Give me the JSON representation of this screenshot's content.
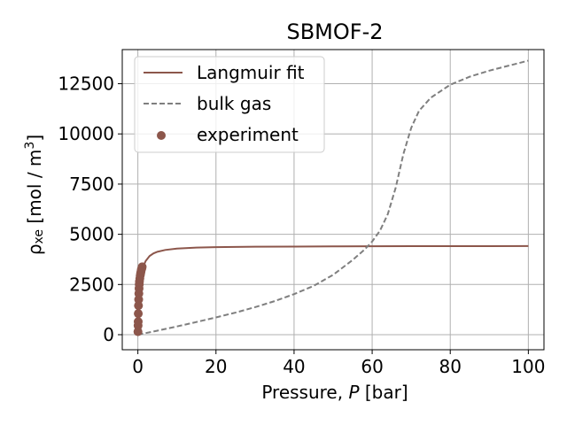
{
  "chart_data": {
    "type": "line",
    "title": "SBMOF-2",
    "xlabel_prefix": "Pressure, ",
    "xlabel_var": "P",
    "xlabel_suffix": " [bar]",
    "ylabel_main": "ρ",
    "ylabel_sub": "xe",
    "ylabel_units": " [mol / m",
    "ylabel_sup": "3",
    "ylabel_close": "]",
    "xlim": [
      -4,
      104
    ],
    "ylim": [
      -750,
      14200
    ],
    "xticks": [
      0,
      20,
      40,
      60,
      80,
      100
    ],
    "yticks": [
      0,
      2500,
      5000,
      7500,
      10000,
      12500
    ],
    "grid": true,
    "legend_position": "top-left",
    "series": [
      {
        "name": "Langmuir fit",
        "style": "solid",
        "color": "#8c564b",
        "x": [
          0,
          0.2,
          0.5,
          1,
          1.5,
          2,
          3,
          4,
          5,
          7,
          10,
          15,
          20,
          30,
          40,
          50,
          60,
          70,
          80,
          90,
          100
        ],
        "y": [
          0,
          1450,
          2360,
          3080,
          3450,
          3670,
          3920,
          4050,
          4130,
          4220,
          4290,
          4340,
          4360,
          4380,
          4390,
          4400,
          4405,
          4408,
          4410,
          4412,
          4413
        ]
      },
      {
        "name": "bulk gas",
        "style": "dashed",
        "color": "#7f7f7f",
        "x": [
          0,
          5,
          10,
          15,
          20,
          25,
          30,
          35,
          40,
          45,
          50,
          55,
          58,
          60,
          62,
          64,
          66,
          68,
          70,
          72,
          75,
          80,
          85,
          90,
          95,
          100
        ],
        "y": [
          0,
          200,
          410,
          630,
          860,
          1100,
          1370,
          1670,
          2020,
          2430,
          2980,
          3720,
          4230,
          4640,
          5180,
          6000,
          7300,
          9000,
          10300,
          11150,
          11800,
          12450,
          12850,
          13150,
          13400,
          13650
        ]
      },
      {
        "name": "experiment",
        "style": "markers",
        "color": "#8c564b",
        "x": [
          0.02,
          0.05,
          0.08,
          0.1,
          0.15,
          0.2,
          0.25,
          0.3,
          0.35,
          0.4,
          0.5,
          0.6,
          0.7,
          0.8,
          0.9,
          1.0,
          1.1
        ],
        "y": [
          150,
          450,
          650,
          1050,
          1450,
          1750,
          2050,
          2300,
          2500,
          2650,
          2800,
          2950,
          3050,
          3150,
          3250,
          3300,
          3380
        ]
      }
    ]
  }
}
